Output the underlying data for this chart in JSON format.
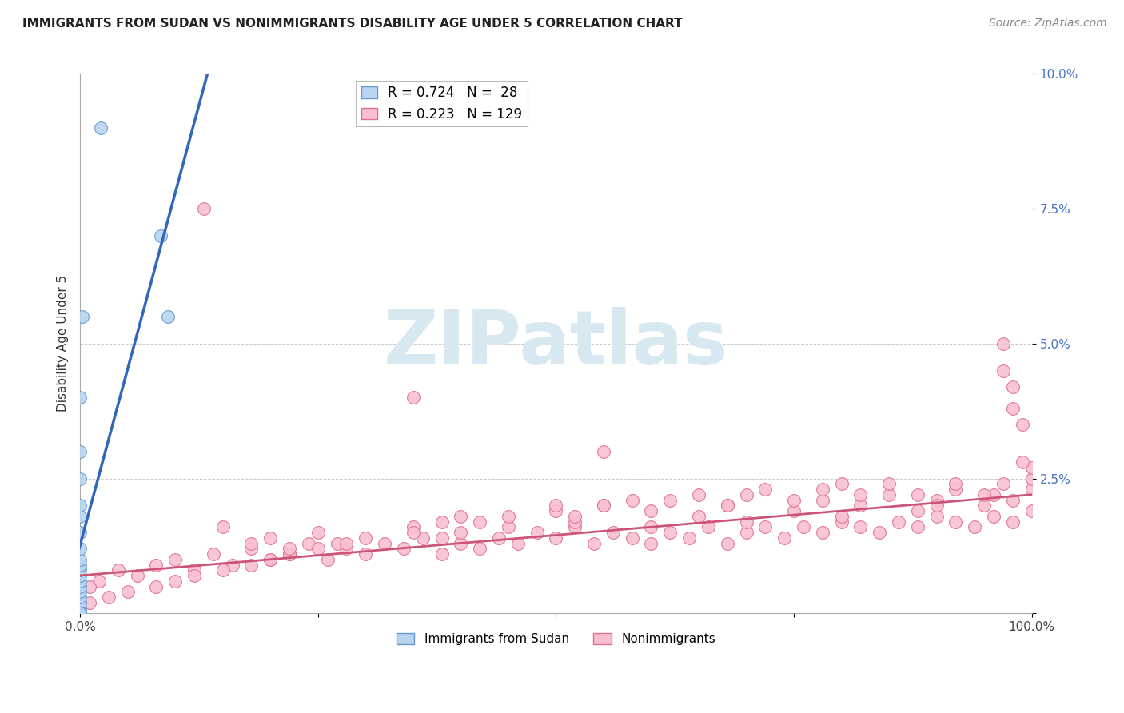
{
  "title": "IMMIGRANTS FROM SUDAN VS NONIMMIGRANTS DISABILITY AGE UNDER 5 CORRELATION CHART",
  "source": "Source: ZipAtlas.com",
  "ylabel": "Disability Age Under 5",
  "xlim": [
    0.0,
    1.0
  ],
  "ylim": [
    0.0,
    0.1
  ],
  "yticks": [
    0.0,
    0.025,
    0.05,
    0.075,
    0.1
  ],
  "ytick_labels": [
    "",
    "2.5%",
    "5.0%",
    "7.5%",
    "10.0%"
  ],
  "xticks": [
    0.0,
    0.25,
    0.5,
    0.75,
    1.0
  ],
  "xtick_labels": [
    "0.0%",
    "",
    "",
    "",
    "100.0%"
  ],
  "series1_name": "Immigrants from Sudan",
  "series1_color": "#b8d4f0",
  "series1_edge_color": "#6699cc",
  "series1_R": 0.724,
  "series1_N": 28,
  "series2_name": "Nonimmigrants",
  "series2_color": "#f8c0d0",
  "series2_edge_color": "#e07090",
  "series2_R": 0.223,
  "series2_N": 129,
  "line1_color": "#3366bb",
  "line2_color": "#cc5577",
  "line1_slope": 0.52,
  "line1_intercept": 0.0,
  "line2_slope": 0.015,
  "line2_intercept": 0.007,
  "watermark_color": "#d8e8f0",
  "background_color": "#ffffff",
  "title_fontsize": 11.5,
  "ytick_color": "#4472c4",
  "grid_color": "#cccccc",
  "sudan_x": [
    0.0,
    0.0,
    0.0,
    0.0,
    0.0,
    0.0,
    0.0,
    0.0,
    0.0,
    0.0,
    0.0,
    0.0,
    0.0,
    0.0,
    0.0,
    0.0,
    0.0,
    0.0,
    0.0,
    0.0,
    0.002,
    0.022,
    0.085,
    0.092,
    0.0,
    0.0,
    0.0,
    0.0
  ],
  "sudan_y": [
    0.0,
    0.0,
    0.0,
    0.001,
    0.002,
    0.003,
    0.004,
    0.005,
    0.006,
    0.007,
    0.008,
    0.009,
    0.01,
    0.012,
    0.015,
    0.018,
    0.02,
    0.025,
    0.03,
    0.04,
    0.055,
    0.09,
    0.07,
    0.055,
    0.0,
    0.0,
    0.0,
    0.0
  ],
  "ni_x": [
    0.02,
    0.04,
    0.06,
    0.08,
    0.1,
    0.12,
    0.14,
    0.16,
    0.18,
    0.2,
    0.22,
    0.24,
    0.26,
    0.28,
    0.3,
    0.32,
    0.34,
    0.36,
    0.38,
    0.4,
    0.42,
    0.44,
    0.46,
    0.48,
    0.5,
    0.52,
    0.54,
    0.56,
    0.58,
    0.6,
    0.62,
    0.64,
    0.66,
    0.68,
    0.7,
    0.72,
    0.74,
    0.76,
    0.78,
    0.8,
    0.82,
    0.84,
    0.86,
    0.88,
    0.9,
    0.92,
    0.94,
    0.96,
    0.98,
    1.0,
    0.25,
    0.27,
    0.35,
    0.38,
    0.4,
    0.45,
    0.5,
    0.52,
    0.55,
    0.6,
    0.65,
    0.68,
    0.7,
    0.75,
    0.78,
    0.8,
    0.82,
    0.85,
    0.88,
    0.9,
    0.92,
    0.95,
    0.96,
    0.97,
    0.98,
    1.0,
    1.0,
    1.0,
    0.95,
    0.92,
    0.9,
    0.88,
    0.85,
    0.82,
    0.8,
    0.78,
    0.75,
    0.72,
    0.7,
    0.68,
    0.65,
    0.62,
    0.6,
    0.58,
    0.55,
    0.52,
    0.5,
    0.45,
    0.42,
    0.4,
    0.38,
    0.35,
    0.3,
    0.28,
    0.25,
    0.22,
    0.2,
    0.18,
    0.15,
    0.12,
    0.1,
    0.08,
    0.05,
    0.03,
    0.01,
    0.01,
    0.13,
    0.35,
    0.55,
    0.97,
    0.98,
    0.99,
    0.97,
    0.98,
    0.99,
    0.15,
    0.18,
    0.2,
    0.22
  ],
  "ni_y": [
    0.006,
    0.008,
    0.007,
    0.009,
    0.01,
    0.008,
    0.011,
    0.009,
    0.012,
    0.01,
    0.011,
    0.013,
    0.01,
    0.012,
    0.011,
    0.013,
    0.012,
    0.014,
    0.011,
    0.013,
    0.012,
    0.014,
    0.013,
    0.015,
    0.014,
    0.016,
    0.013,
    0.015,
    0.014,
    0.013,
    0.015,
    0.014,
    0.016,
    0.013,
    0.015,
    0.016,
    0.014,
    0.016,
    0.015,
    0.017,
    0.016,
    0.015,
    0.017,
    0.016,
    0.018,
    0.017,
    0.016,
    0.018,
    0.017,
    0.019,
    0.015,
    0.013,
    0.016,
    0.014,
    0.018,
    0.016,
    0.019,
    0.017,
    0.02,
    0.016,
    0.018,
    0.02,
    0.017,
    0.019,
    0.021,
    0.018,
    0.02,
    0.022,
    0.019,
    0.021,
    0.023,
    0.02,
    0.022,
    0.024,
    0.021,
    0.023,
    0.025,
    0.027,
    0.022,
    0.024,
    0.02,
    0.022,
    0.024,
    0.022,
    0.024,
    0.023,
    0.021,
    0.023,
    0.022,
    0.02,
    0.022,
    0.021,
    0.019,
    0.021,
    0.02,
    0.018,
    0.02,
    0.018,
    0.017,
    0.015,
    0.017,
    0.015,
    0.014,
    0.013,
    0.012,
    0.011,
    0.01,
    0.009,
    0.008,
    0.007,
    0.006,
    0.005,
    0.004,
    0.003,
    0.002,
    0.005,
    0.075,
    0.04,
    0.03,
    0.05,
    0.042,
    0.035,
    0.045,
    0.038,
    0.028,
    0.016,
    0.013,
    0.014,
    0.012
  ]
}
